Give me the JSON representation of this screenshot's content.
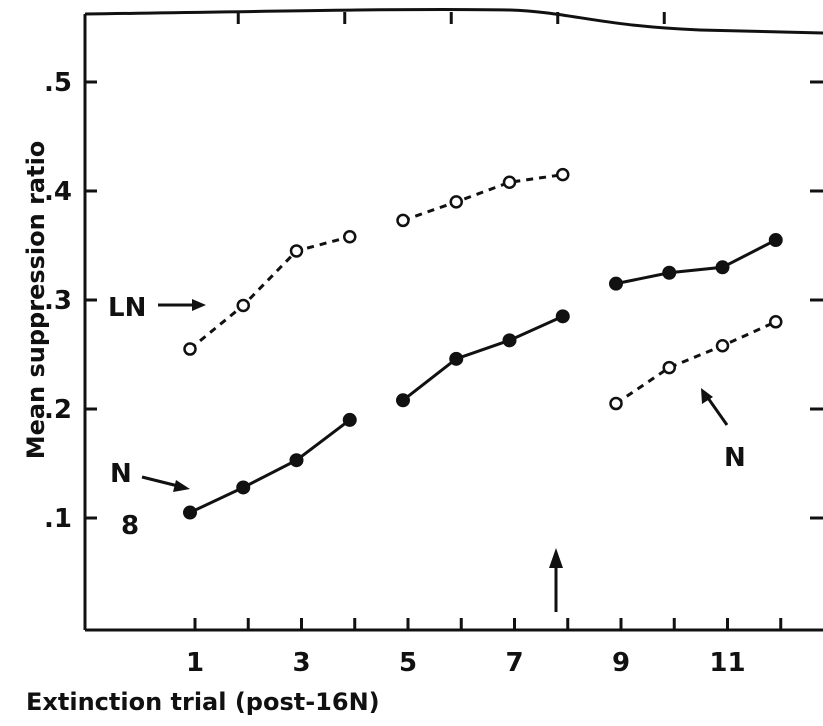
{
  "chart_data": {
    "type": "line",
    "title": "",
    "xlabel": "Extinction trial (post-16N)",
    "ylabel": "Mean suppression ratio",
    "xlim": [
      0,
      13
    ],
    "ylim": [
      0,
      0.55
    ],
    "x_ticks": [
      1,
      3,
      5,
      7,
      9,
      11
    ],
    "x_tick_labels": [
      "1",
      "3",
      "5",
      "7",
      "9",
      "11"
    ],
    "y_ticks": [
      0.1,
      0.2,
      0.3,
      0.4,
      0.5
    ],
    "y_tick_labels": [
      ".1",
      ".2",
      ".3",
      ".4",
      ".5"
    ],
    "grid": false,
    "series": [
      {
        "name": "LN",
        "marker": "open-circle",
        "line_style": "dashed",
        "segments": [
          {
            "x": [
              1,
              2,
              3,
              4
            ],
            "y": [
              0.255,
              0.295,
              0.345,
              0.358
            ]
          },
          {
            "x": [
              5,
              6,
              7,
              8
            ],
            "y": [
              0.373,
              0.39,
              0.408,
              0.415
            ]
          }
        ]
      },
      {
        "name": "N",
        "marker": "filled-circle",
        "line_style": "solid",
        "segments": [
          {
            "x": [
              1,
              2,
              3,
              4
            ],
            "y": [
              0.105,
              0.128,
              0.153,
              0.19
            ]
          },
          {
            "x": [
              5,
              6,
              7,
              8
            ],
            "y": [
              0.208,
              0.246,
              0.263,
              0.285
            ]
          },
          {
            "x": [
              9,
              10,
              11,
              12
            ],
            "y": [
              0.315,
              0.325,
              0.33,
              0.355
            ]
          }
        ]
      },
      {
        "name": "N",
        "marker": "open-circle",
        "line_style": "dashed",
        "segments": [
          {
            "x": [
              9,
              10,
              11,
              12
            ],
            "y": [
              0.205,
              0.238,
              0.258,
              0.28
            ]
          }
        ]
      }
    ],
    "annotations": {
      "ln_label": "LN",
      "n_label_left": "N",
      "n_label_right": "N",
      "group_size": "8"
    },
    "colors": {
      "ink": "#111111",
      "background": "#ffffff"
    }
  }
}
